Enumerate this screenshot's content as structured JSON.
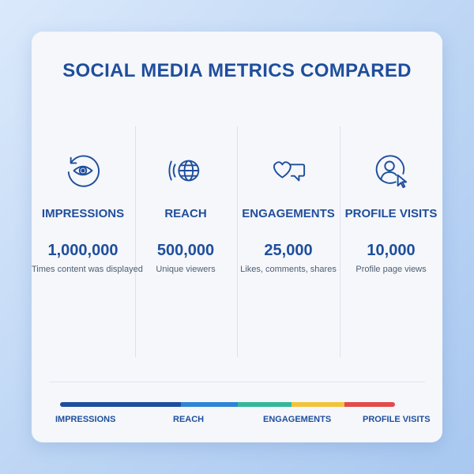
{
  "title": "SOCIAL MEDIA METRICS COMPARED",
  "metrics": [
    {
      "icon": "eye-refresh-icon",
      "label": "IMPRESSIONS",
      "value": "1,000,000",
      "desc": "Times content was displayed"
    },
    {
      "icon": "globe-broadcast-icon",
      "label": "REACH",
      "value": "500,000",
      "desc": "Unique viewers"
    },
    {
      "icon": "heart-chat-icon",
      "label": "ENGAGEMENTS",
      "value": "25,000",
      "desc": "Likes, comments, shares"
    },
    {
      "icon": "user-cursor-icon",
      "label": "PROFILE VISITS",
      "value": "10,000",
      "desc": "Profile page views"
    }
  ],
  "bar": {
    "labels": [
      "IMPRESSIONS",
      "REACH",
      "ENGAGEMENTS",
      "PROFILE VISITS"
    ],
    "colors": [
      "#1f4e9c",
      "#2f84d6",
      "#34b89a",
      "#f2c33d",
      "#e24b4b"
    ]
  },
  "colors": {
    "accent": "#1f4e9c",
    "text_muted": "#4f5d70",
    "card_bg": "#f5f7fb"
  }
}
